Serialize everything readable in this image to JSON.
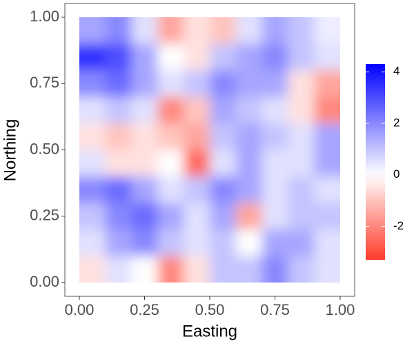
{
  "chart_data": {
    "type": "heatmap",
    "x_label": "Easting",
    "y_label": "Northing",
    "x": [
      0.05,
      0.15,
      0.25,
      0.35,
      0.45,
      0.55,
      0.65,
      0.75,
      0.85,
      0.95
    ],
    "y": [
      0.95,
      0.85,
      0.75,
      0.65,
      0.55,
      0.45,
      0.35,
      0.25,
      0.15,
      0.05
    ],
    "z": [
      [
        1.5,
        2,
        0.5,
        -1.5,
        -0.5,
        -1,
        0.5,
        1.5,
        1,
        0.3
      ],
      [
        3.5,
        3,
        1.5,
        0,
        -0.5,
        1,
        1.5,
        2,
        1,
        0.5
      ],
      [
        2,
        2.5,
        1.5,
        0.5,
        1,
        2,
        1.5,
        1.5,
        -0.5,
        -1.5
      ],
      [
        0.5,
        1,
        0.5,
        -2,
        -1,
        1.5,
        1,
        0.5,
        -0.5,
        -2
      ],
      [
        -0.5,
        -1,
        -0.5,
        -1,
        -1.5,
        1,
        1.5,
        1,
        0.5,
        1.5
      ],
      [
        0.5,
        -0.5,
        -0.5,
        0,
        -2.5,
        0.5,
        1.5,
        0.5,
        0.5,
        1.5
      ],
      [
        2,
        2.5,
        1.5,
        0.5,
        1,
        2,
        1.5,
        0.5,
        1,
        0.5
      ],
      [
        1,
        2,
        2.5,
        1.5,
        0.5,
        1.5,
        -1.5,
        0.5,
        1,
        1
      ],
      [
        0.5,
        1.5,
        2,
        1,
        0.5,
        1,
        0,
        1.5,
        1.5,
        0.5
      ],
      [
        -0.5,
        0.5,
        0,
        -2,
        -0.5,
        1,
        1,
        2,
        1,
        0.5
      ]
    ],
    "xlim": [
      0,
      1
    ],
    "ylim": [
      0,
      1
    ],
    "xticks": [
      {
        "value": 0,
        "label": "0.00"
      },
      {
        "value": 0.25,
        "label": "0.25"
      },
      {
        "value": 0.5,
        "label": "0.50"
      },
      {
        "value": 0.75,
        "label": "0.75"
      },
      {
        "value": 1,
        "label": "1.00"
      }
    ],
    "yticks": [
      {
        "value": 0,
        "label": "0.00"
      },
      {
        "value": 0.25,
        "label": "0.25"
      },
      {
        "value": 0.5,
        "label": "0.50"
      },
      {
        "value": 0.75,
        "label": "0.75"
      },
      {
        "value": 1,
        "label": "1.00"
      }
    ],
    "clim": [
      -3.3,
      4.3
    ],
    "cticks": [
      -2,
      0,
      2,
      4
    ],
    "colors": {
      "low": "#ff3b2a",
      "mid": "#ffffff",
      "high": "#0000ff"
    }
  }
}
